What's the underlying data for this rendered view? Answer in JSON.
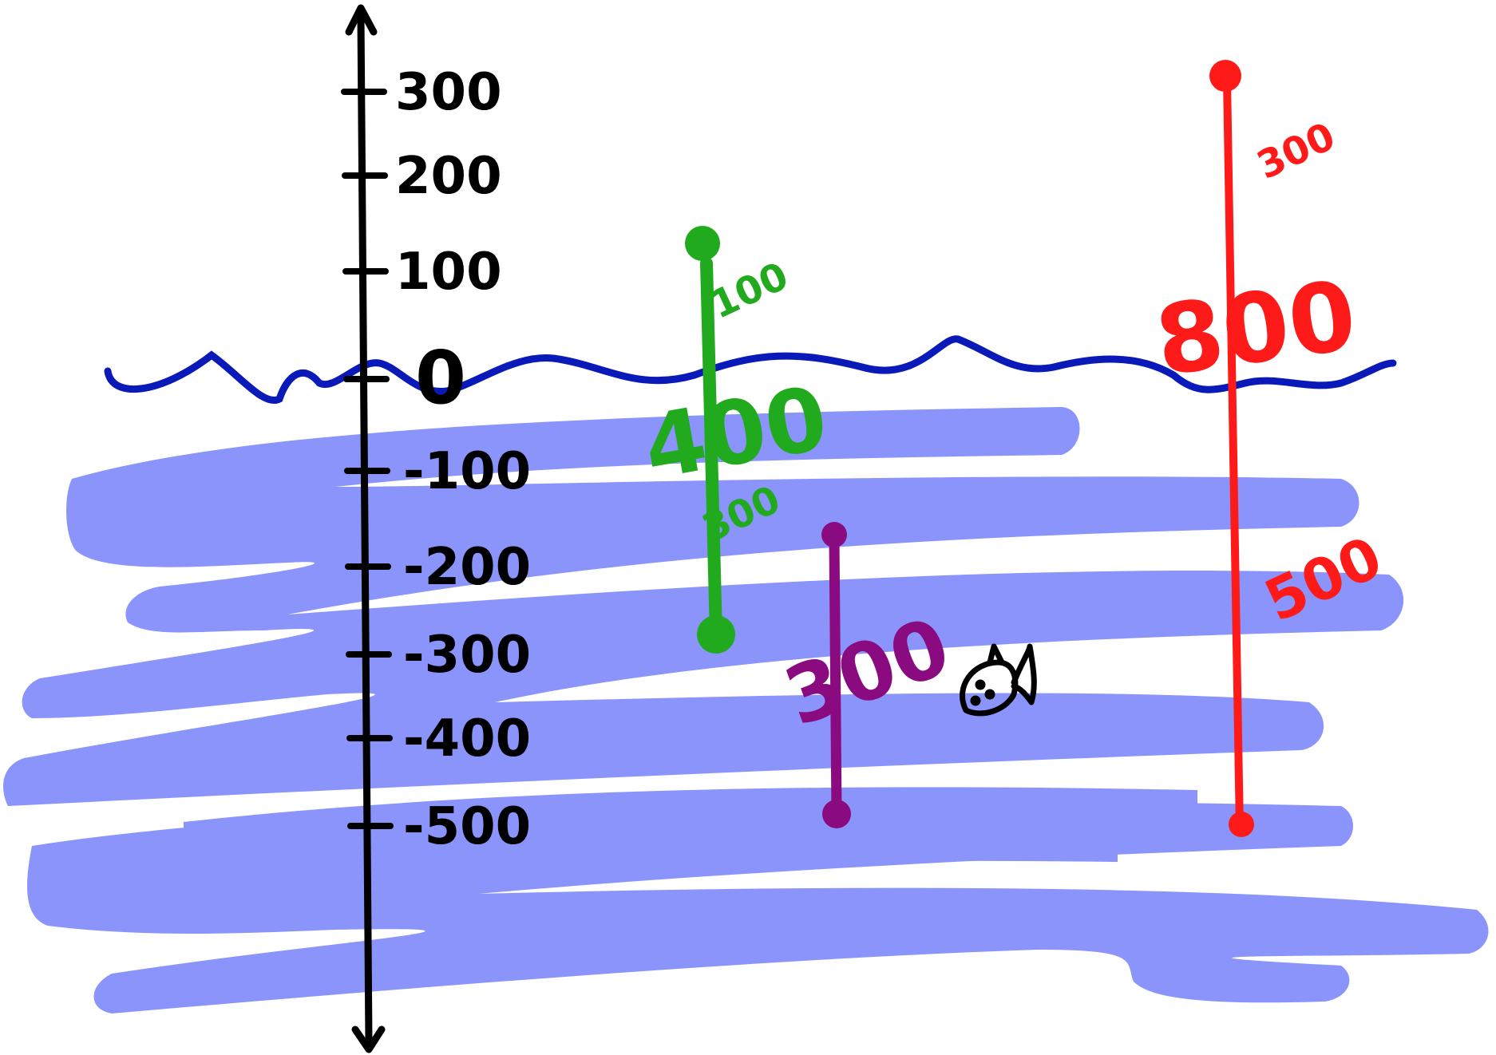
{
  "axis": {
    "ticks": [
      "300",
      "200",
      "100",
      "0",
      "-100",
      "-200",
      "-300",
      "-400",
      "-500"
    ]
  },
  "colors": {
    "water": "#8a94fb",
    "wave": "#0a1ab8",
    "axis": "#000000",
    "green": "#22aa1f",
    "purple": "#8a0a80",
    "red": "#ff1a1a"
  },
  "green_line": {
    "from": 100,
    "to": -300,
    "label_total": "400",
    "label_top": "100",
    "label_bottom": "300"
  },
  "purple_line": {
    "from": -200,
    "to": -500,
    "label_total": "300"
  },
  "red_line": {
    "from": 300,
    "to": -500,
    "label_total": "800",
    "label_top": "300",
    "label_bottom": "500"
  },
  "icons": {
    "fish": "fish-icon"
  }
}
